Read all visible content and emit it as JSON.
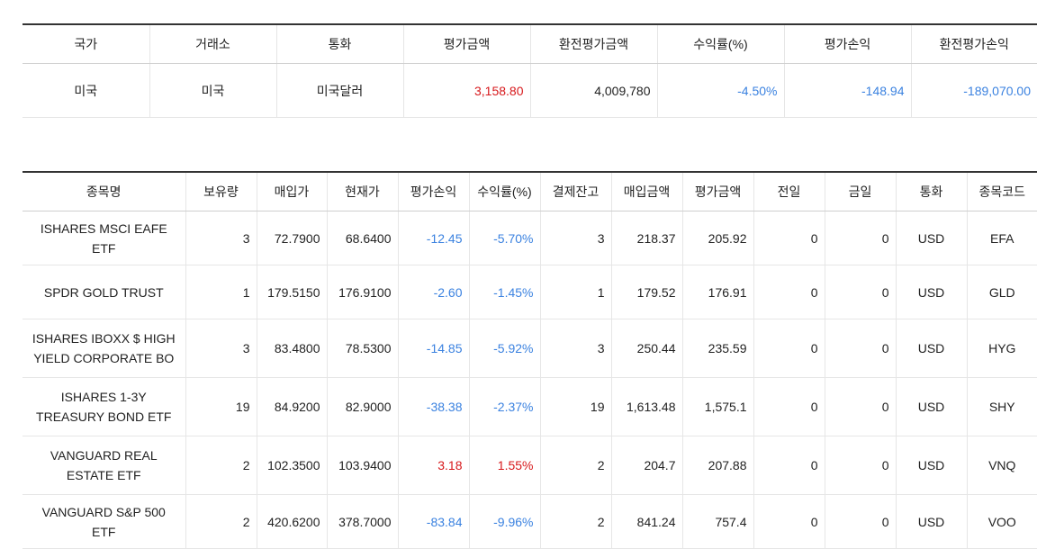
{
  "summary": {
    "headers": [
      "국가",
      "거래소",
      "통화",
      "평가금액",
      "환전평가금액",
      "수익률(%)",
      "평가손익",
      "환전평가손익"
    ],
    "row": {
      "country": "미국",
      "exchange": "미국",
      "currency": "미국달러",
      "eval_amount": "3,158.80",
      "converted_eval_amount": "4,009,780",
      "return_rate": "-4.50%",
      "eval_pnl": "-148.94",
      "converted_eval_pnl": "-189,070.00"
    }
  },
  "holdings": {
    "headers": [
      "종목명",
      "보유량",
      "매입가",
      "현재가",
      "평가손익",
      "수익률(%)",
      "결제잔고",
      "매입금액",
      "평가금액",
      "전일",
      "금일",
      "통화",
      "종목코드"
    ],
    "rows": [
      {
        "name": "ISHARES MSCI EAFE ETF",
        "qty": "3",
        "buy_price": "72.7900",
        "cur_price": "68.6400",
        "pnl": "-12.45",
        "rate": "-5.70%",
        "settled": "3",
        "buy_amount": "218.37",
        "eval_amount": "205.92",
        "prev_day": "0",
        "today": "0",
        "currency": "USD",
        "code": "EFA"
      },
      {
        "name": "SPDR GOLD TRUST",
        "qty": "1",
        "buy_price": "179.5150",
        "cur_price": "176.9100",
        "pnl": "-2.60",
        "rate": "-1.45%",
        "settled": "1",
        "buy_amount": "179.52",
        "eval_amount": "176.91",
        "prev_day": "0",
        "today": "0",
        "currency": "USD",
        "code": "GLD"
      },
      {
        "name": "ISHARES IBOXX $ HIGH YIELD CORPORATE BO",
        "qty": "3",
        "buy_price": "83.4800",
        "cur_price": "78.5300",
        "pnl": "-14.85",
        "rate": "-5.92%",
        "settled": "3",
        "buy_amount": "250.44",
        "eval_amount": "235.59",
        "prev_day": "0",
        "today": "0",
        "currency": "USD",
        "code": "HYG"
      },
      {
        "name": "ISHARES 1-3Y TREASURY BOND ETF",
        "qty": "19",
        "buy_price": "84.9200",
        "cur_price": "82.9000",
        "pnl": "-38.38",
        "rate": "-2.37%",
        "settled": "19",
        "buy_amount": "1,613.48",
        "eval_amount": "1,575.1",
        "prev_day": "0",
        "today": "0",
        "currency": "USD",
        "code": "SHY"
      },
      {
        "name": "VANGUARD REAL ESTATE ETF",
        "qty": "2",
        "buy_price": "102.3500",
        "cur_price": "103.9400",
        "pnl": "3.18",
        "rate": "1.55%",
        "settled": "2",
        "buy_amount": "204.7",
        "eval_amount": "207.88",
        "prev_day": "0",
        "today": "0",
        "currency": "USD",
        "code": "VNQ"
      },
      {
        "name": "VANGUARD S&P 500 ETF",
        "qty": "2",
        "buy_price": "420.6200",
        "cur_price": "378.7000",
        "pnl": "-83.84",
        "rate": "-9.96%",
        "settled": "2",
        "buy_amount": "841.24",
        "eval_amount": "757.4",
        "prev_day": "0",
        "today": "0",
        "currency": "USD",
        "code": "VOO"
      }
    ]
  },
  "colors": {
    "positive": "#d7191c",
    "negative": "#3b82e0"
  }
}
